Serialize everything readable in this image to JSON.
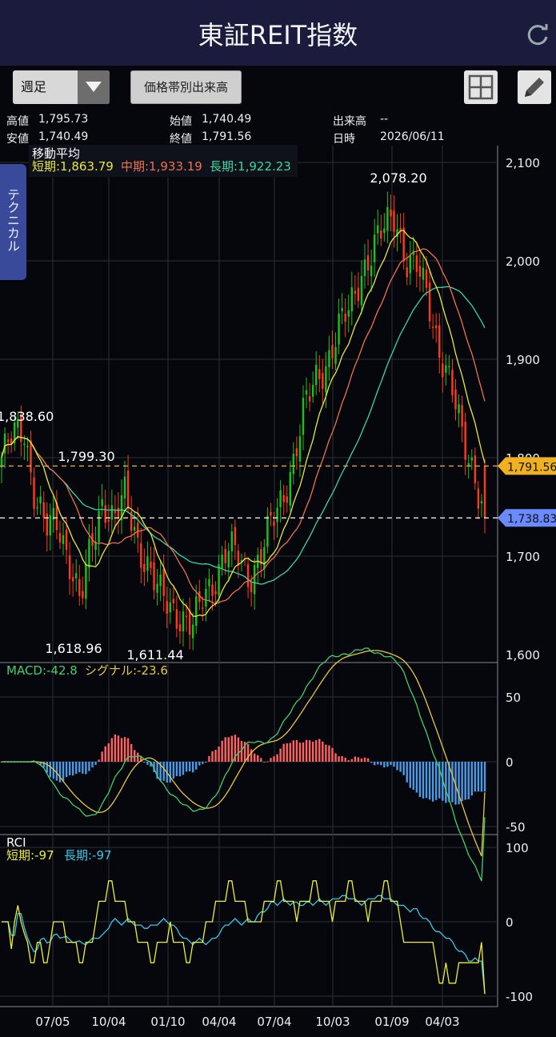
{
  "header": {
    "title": "東証REIT指数"
  },
  "toolbar": {
    "period": "週足",
    "volume_button": "価格帯別出来高"
  },
  "info": {
    "high_label": "高値",
    "high": "1,795.73",
    "low_label": "安値",
    "low": "1,740.49",
    "open_label": "始値",
    "open": "1,740.49",
    "close_label": "終値",
    "close": "1,791.56",
    "volume_label": "出来高",
    "volume": "--",
    "date_label": "日時",
    "date": "2026/06/11"
  },
  "side_tab": "テクニカル",
  "colors": {
    "up": "#19c21a",
    "down": "#ff3a1a",
    "ma_short": "#e8e83c",
    "ma_mid": "#f07050",
    "ma_long": "#3ad7a0",
    "macd": "#40d070",
    "signal": "#e8c840",
    "rci_short": "#f0f030",
    "rci_long": "#38c8e8",
    "hist_pos": "#ff6060",
    "hist_neg": "#4a9ae8"
  },
  "chart_data": [
    {
      "type": "candlestick",
      "title": "移動平均",
      "legend": {
        "short": "短期:1,863.79",
        "mid": "中期:1,933.19",
        "long": "長期:1,922.23"
      },
      "x_ticks": [
        "07/05",
        "10/04",
        "01/10",
        "04/04",
        "07/04",
        "10/03",
        "01/09",
        "04/03"
      ],
      "y_ticks": [
        "2,100",
        "2,000",
        "1,900",
        "1,800",
        "1,700",
        "1,600"
      ],
      "ylim": [
        1600,
        2100
      ],
      "annotations": {
        "max": "2,078.20",
        "left": "1,838.60",
        "peak1": "1,799.30",
        "low1": "1,618.96",
        "low2": "1,611.44"
      },
      "price_tags": {
        "current": "1,791.56",
        "last": "1,738.83"
      },
      "price_tag_values": {
        "current": 1791.56,
        "last": 1738.83
      },
      "anchors": [
        1800,
        1820,
        1830,
        1760,
        1725,
        1735,
        1700,
        1650,
        1710,
        1760,
        1735,
        1760,
        1720,
        1690,
        1660,
        1650,
        1640,
        1625,
        1660,
        1680,
        1705,
        1700,
        1680,
        1700,
        1730,
        1760,
        1800,
        1850,
        1880,
        1900,
        1930,
        1950,
        1990,
        2010,
        2030,
        2050,
        2000,
        1990,
        1960,
        1910,
        1870,
        1820,
        1790,
        1740
      ],
      "series_values": {
        "short_ma_end": 1863.79,
        "mid_ma_end": 1933.19,
        "long_ma_end": 1922.23
      }
    },
    {
      "type": "line",
      "title": "MACD",
      "legend": {
        "macd": "MACD:-42.8",
        "signal": "シグナル:-23.6"
      },
      "y_ticks": [
        "50",
        "0",
        "-50"
      ],
      "ylim": [
        -55,
        60
      ]
    },
    {
      "type": "line",
      "title": "RCI",
      "legend": {
        "short": "短期:-97",
        "long": "長期:-97"
      },
      "y_ticks": [
        "100",
        "0",
        "-100"
      ],
      "ylim": [
        -105,
        105
      ]
    }
  ]
}
